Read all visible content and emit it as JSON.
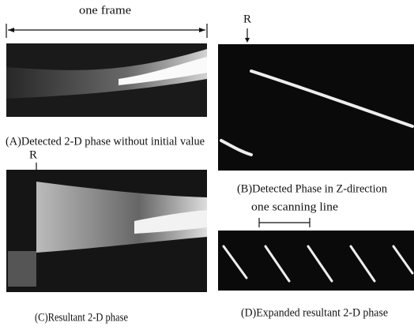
{
  "figure": {
    "panel_a": {
      "label": "one frame",
      "caption": "(A)Detected 2-D phase without initial value"
    },
    "panel_b": {
      "marker": "R",
      "caption": "(B)Detected Phase in Z-direction"
    },
    "panel_c": {
      "marker": "R",
      "caption": "(C)Resultant 2-D phase"
    },
    "panel_d": {
      "label": "one scanning line",
      "caption": "(D)Expanded resultant 2-D phase"
    }
  }
}
